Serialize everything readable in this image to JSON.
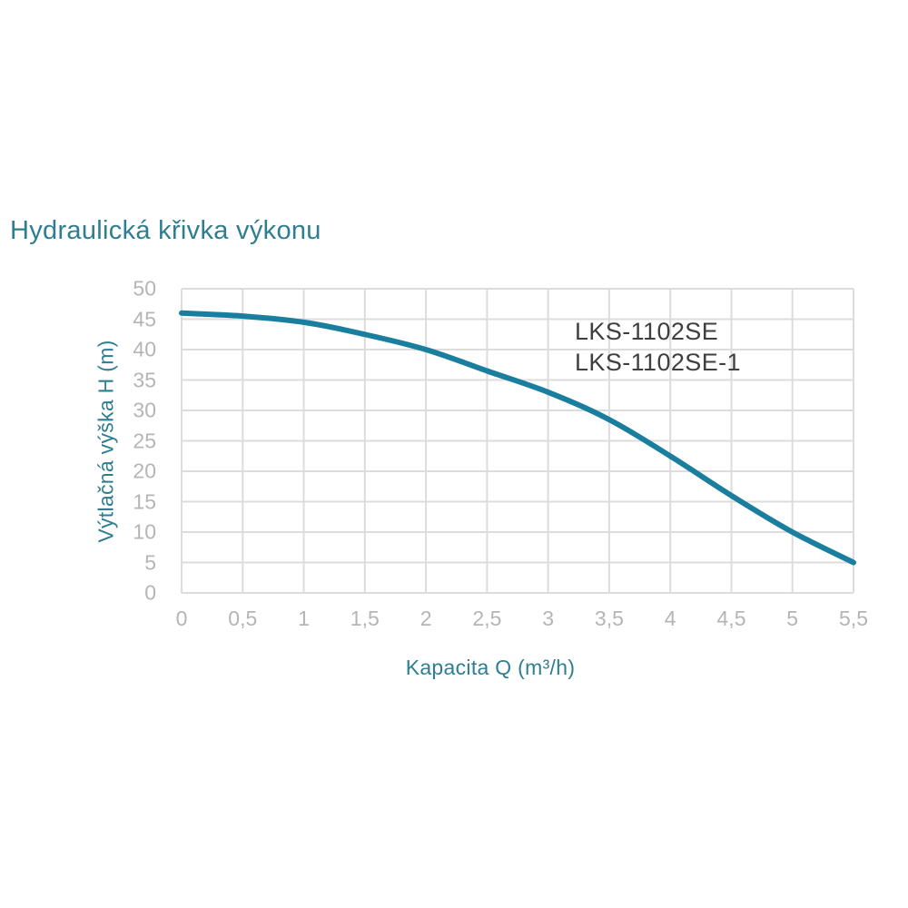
{
  "title": "Hydraulická křivka výkonu",
  "chart_data": {
    "type": "line",
    "title": "Hydraulická křivka výkonu",
    "xlabel": "Kapacita Q (m³/h)",
    "ylabel": "Výtlačná výška H (m)",
    "x": [
      0,
      0.5,
      1,
      1.5,
      2,
      2.5,
      3,
      3.5,
      4,
      4.5,
      5,
      5.5
    ],
    "series": [
      {
        "name": "LKS-1102SE / LKS-1102SE-1",
        "values": [
          46,
          45.5,
          44.5,
          42.5,
          40,
          36.5,
          33,
          28.5,
          22.5,
          16,
          10,
          5
        ]
      }
    ],
    "xlim": [
      0,
      5.5
    ],
    "ylim": [
      0,
      50
    ],
    "x_tick_labels": [
      "0",
      "0,5",
      "1",
      "1,5",
      "2",
      "2,5",
      "3",
      "3,5",
      "4",
      "4,5",
      "5",
      "5,5"
    ],
    "y_ticks": [
      0,
      5,
      10,
      15,
      20,
      25,
      30,
      35,
      40,
      45,
      50
    ],
    "grid": true,
    "legend_position": "none",
    "annotations": [
      "LKS-1102SE",
      "LKS-1102SE-1"
    ],
    "colors": {
      "curve": "#1a7e9e",
      "heading": "#2e7e92",
      "tick_text": "#b5b5b8",
      "grid": "#dcdcdc",
      "annotation": "#3f3f41",
      "background": "#ffffff"
    }
  }
}
